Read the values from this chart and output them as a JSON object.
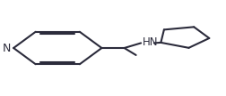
{
  "bg_color": "#ffffff",
  "line_color": "#2b2b3b",
  "line_width": 1.5,
  "font_size": 8.5,
  "label_N": "N",
  "label_HN": "HN",
  "figsize": [
    2.52,
    1.08
  ],
  "dpi": 100
}
